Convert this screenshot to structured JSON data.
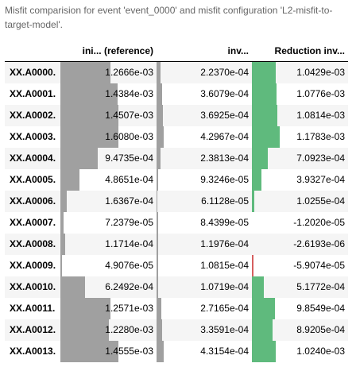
{
  "caption": "Misfit comparision for event 'event_0000' and misfit configuration 'L2-misfit-to-target-model'.",
  "columns": {
    "station": "",
    "initial": "ini... (reference)",
    "inverted": "inv...",
    "reduction": "Reduction inv..."
  },
  "colors": {
    "initial_bar": "#a0a0a0",
    "inverted_bar": "#a0a0a0",
    "reduction_positive": "#5fba7d",
    "reduction_negative": "#d65f5f"
  },
  "rows": [
    {
      "station": "XX.A0000.",
      "initial": "1.2666e-03",
      "inverted": "2.2370e-04",
      "reduction": "1.0429e-03",
      "initial_fill": 0.87,
      "inverted_fill": 0.051,
      "reduction_fill": 0.55
    },
    {
      "station": "XX.A0001.",
      "initial": "1.4384e-03",
      "inverted": "3.6079e-04",
      "reduction": "1.0776e-03",
      "initial_fill": 0.988,
      "inverted_fill": 0.082,
      "reduction_fill": 0.57
    },
    {
      "station": "XX.A0002.",
      "initial": "1.4507e-03",
      "inverted": "3.6925e-04",
      "reduction": "1.0814e-03",
      "initial_fill": 0.997,
      "inverted_fill": 0.084,
      "reduction_fill": 0.58
    },
    {
      "station": "XX.A0003.",
      "initial": "1.6080e-03",
      "inverted": "4.2967e-04",
      "reduction": "1.1783e-03",
      "initial_fill": 1.0,
      "inverted_fill": 0.098,
      "reduction_fill": 0.63
    },
    {
      "station": "XX.A0004.",
      "initial": "9.4735e-04",
      "inverted": "2.3813e-04",
      "reduction": "7.0923e-04",
      "initial_fill": 0.651,
      "inverted_fill": 0.054,
      "reduction_fill": 0.37
    },
    {
      "station": "XX.A0005.",
      "initial": "4.8651e-04",
      "inverted": "9.3246e-05",
      "reduction": "3.9327e-04",
      "initial_fill": 0.334,
      "inverted_fill": 0.021,
      "reduction_fill": 0.21
    },
    {
      "station": "XX.A0006.",
      "initial": "1.6367e-04",
      "inverted": "6.1128e-05",
      "reduction": "1.0255e-04",
      "initial_fill": 0.112,
      "inverted_fill": 0.014,
      "reduction_fill": 0.05
    },
    {
      "station": "XX.A0007.",
      "initial": "7.2379e-05",
      "inverted": "8.4399e-05",
      "reduction": "-1.2020e-05",
      "initial_fill": 0.05,
      "inverted_fill": 0.019,
      "reduction_fill": 0.0
    },
    {
      "station": "XX.A0008.",
      "initial": "1.1714e-04",
      "inverted": "1.1976e-04",
      "reduction": "-2.6193e-06",
      "initial_fill": 0.08,
      "inverted_fill": 0.027,
      "reduction_fill": 0.0
    },
    {
      "station": "XX.A0009.",
      "initial": "4.9076e-05",
      "inverted": "1.0815e-04",
      "reduction": "-5.9074e-05",
      "initial_fill": 0.034,
      "inverted_fill": 0.025,
      "reduction_fill": -0.02
    },
    {
      "station": "XX.A0010.",
      "initial": "6.2492e-04",
      "inverted": "1.0719e-04",
      "reduction": "5.1772e-04",
      "initial_fill": 0.429,
      "inverted_fill": 0.024,
      "reduction_fill": 0.27
    },
    {
      "station": "XX.A0011.",
      "initial": "1.2571e-03",
      "inverted": "2.7165e-04",
      "reduction": "9.8549e-04",
      "initial_fill": 0.864,
      "inverted_fill": 0.062,
      "reduction_fill": 0.52
    },
    {
      "station": "XX.A0012.",
      "initial": "1.2280e-03",
      "inverted": "3.3591e-04",
      "reduction": "8.9205e-04",
      "initial_fill": 0.844,
      "inverted_fill": 0.076,
      "reduction_fill": 0.47
    },
    {
      "station": "XX.A0013.",
      "initial": "1.4555e-03",
      "inverted": "4.3154e-04",
      "reduction": "1.0240e-03",
      "initial_fill": 1.0,
      "inverted_fill": 0.098,
      "reduction_fill": 0.54
    }
  ]
}
